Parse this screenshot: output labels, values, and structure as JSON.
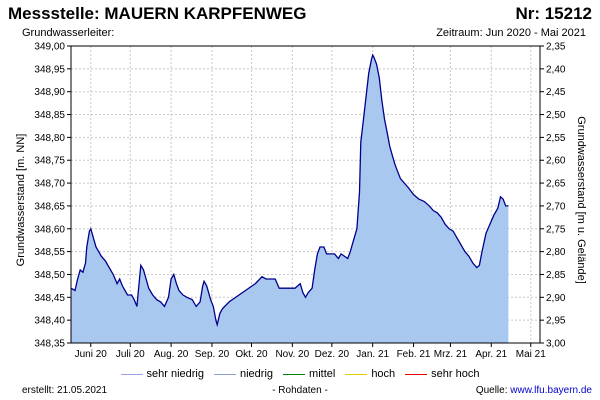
{
  "header": {
    "title": "Messstelle: MAUERN KARPFENWEG",
    "station_nr": "Nr: 15212",
    "aquifer": "Grundwasserleiter:",
    "period": "Zeitraum: Jun 2020 - Mai 2021"
  },
  "footer": {
    "created": "erstellt:  21.05.2021",
    "rawdata": "- Rohdaten -",
    "source_label": "Quelle: ",
    "source_url": "www.lfu.bayern.de"
  },
  "legend": [
    {
      "label": "sehr niedrig",
      "color": "#a0a0e8"
    },
    {
      "label": "niedrig",
      "color": "#8aa0c8"
    },
    {
      "label": "mittel",
      "color": "#008000"
    },
    {
      "label": "hoch",
      "color": "#e0d000"
    },
    {
      "label": "sehr hoch",
      "color": "#e00000"
    }
  ],
  "colors": {
    "area_fill": "#a9c8f0",
    "line": "#00008b",
    "grid": "#c8c8c8"
  },
  "chart_data": {
    "type": "area",
    "ylabel_left": "Grundwasserstand [m. NN]",
    "ylabel_right": "Grundwasserstand [m u. Gelände]",
    "ylim": [
      348.35,
      349.0
    ],
    "yticks_left": [
      "349,00",
      "348,95",
      "348,90",
      "348,85",
      "348,80",
      "348,75",
      "348,70",
      "348,65",
      "348,60",
      "348,55",
      "348,50",
      "348,45",
      "348,40",
      "348,35"
    ],
    "yticks_right": [
      "2,35",
      "2,40",
      "2,45",
      "2,50",
      "2,55",
      "2,60",
      "2,65",
      "2,70",
      "2,75",
      "2,80",
      "2,85",
      "2,90",
      "2,95",
      "3,00"
    ],
    "xlim_days": [
      0,
      356
    ],
    "month_labels": [
      {
        "label": "Juni 20",
        "day": 15
      },
      {
        "label": "Juli 20",
        "day": 45
      },
      {
        "label": "Aug. 20",
        "day": 76
      },
      {
        "label": "Sep. 20",
        "day": 107
      },
      {
        "label": "Okt. 20",
        "day": 137
      },
      {
        "label": "Nov. 20",
        "day": 168
      },
      {
        "label": "Dez. 20",
        "day": 198
      },
      {
        "label": "Jan. 21",
        "day": 229
      },
      {
        "label": "Feb. 21",
        "day": 260
      },
      {
        "label": "Mrz. 21",
        "day": 288
      },
      {
        "label": "Apr. 21",
        "day": 319
      },
      {
        "label": "Mai 21",
        "day": 349
      }
    ],
    "series": [
      {
        "name": "Grundwasserstand",
        "points": [
          [
            0,
            348.47
          ],
          [
            3,
            348.465
          ],
          [
            5,
            348.49
          ],
          [
            7,
            348.51
          ],
          [
            9,
            348.505
          ],
          [
            11,
            348.525
          ],
          [
            12,
            348.56
          ],
          [
            14,
            348.595
          ],
          [
            15,
            348.6
          ],
          [
            17,
            348.58
          ],
          [
            19,
            348.56
          ],
          [
            21,
            348.55
          ],
          [
            23,
            348.54
          ],
          [
            26,
            348.53
          ],
          [
            29,
            348.515
          ],
          [
            32,
            348.5
          ],
          [
            35,
            348.48
          ],
          [
            37,
            348.49
          ],
          [
            39,
            348.475
          ],
          [
            41,
            348.465
          ],
          [
            43,
            348.455
          ],
          [
            46,
            348.455
          ],
          [
            48,
            348.445
          ],
          [
            50,
            348.43
          ],
          [
            52,
            348.49
          ],
          [
            53,
            348.52
          ],
          [
            55,
            348.51
          ],
          [
            57,
            348.49
          ],
          [
            59,
            348.47
          ],
          [
            62,
            348.455
          ],
          [
            65,
            348.445
          ],
          [
            68,
            348.44
          ],
          [
            71,
            348.43
          ],
          [
            74,
            348.45
          ],
          [
            76,
            348.49
          ],
          [
            78,
            348.5
          ],
          [
            80,
            348.48
          ],
          [
            82,
            348.465
          ],
          [
            85,
            348.455
          ],
          [
            88,
            348.45
          ],
          [
            92,
            348.445
          ],
          [
            95,
            348.43
          ],
          [
            98,
            348.44
          ],
          [
            100,
            348.475
          ],
          [
            101,
            348.485
          ],
          [
            103,
            348.475
          ],
          [
            106,
            348.445
          ],
          [
            108,
            348.43
          ],
          [
            110,
            348.4
          ],
          [
            111,
            348.39
          ],
          [
            113,
            348.415
          ],
          [
            115,
            348.425
          ],
          [
            120,
            348.44
          ],
          [
            140,
            348.48
          ],
          [
            145,
            348.495
          ],
          [
            148,
            348.49
          ],
          [
            155,
            348.49
          ],
          [
            158,
            348.47
          ],
          [
            170,
            348.47
          ],
          [
            174,
            348.48
          ],
          [
            176,
            348.46
          ],
          [
            178,
            348.45
          ],
          [
            180,
            348.46
          ],
          [
            183,
            348.47
          ],
          [
            185,
            348.51
          ],
          [
            187,
            348.545
          ],
          [
            189,
            348.56
          ],
          [
            192,
            348.56
          ],
          [
            194,
            348.545
          ],
          [
            200,
            348.545
          ],
          [
            203,
            348.535
          ],
          [
            205,
            348.545
          ],
          [
            210,
            348.535
          ],
          [
            212,
            348.55
          ],
          [
            215,
            348.58
          ],
          [
            217,
            348.6
          ],
          [
            219,
            348.68
          ],
          [
            220,
            348.79
          ],
          [
            222,
            348.84
          ],
          [
            224,
            348.89
          ],
          [
            226,
            348.94
          ],
          [
            228,
            348.97
          ],
          [
            229,
            348.98
          ],
          [
            230,
            348.975
          ],
          [
            232,
            348.96
          ],
          [
            234,
            348.93
          ],
          [
            236,
            348.88
          ],
          [
            238,
            348.84
          ],
          [
            240,
            348.81
          ],
          [
            242,
            348.78
          ],
          [
            244,
            348.76
          ],
          [
            246,
            348.74
          ],
          [
            248,
            348.725
          ],
          [
            250,
            348.71
          ],
          [
            253,
            348.7
          ],
          [
            256,
            348.69
          ],
          [
            260,
            348.675
          ],
          [
            264,
            348.665
          ],
          [
            268,
            348.66
          ],
          [
            272,
            348.65
          ],
          [
            275,
            348.64
          ],
          [
            278,
            348.635
          ],
          [
            281,
            348.625
          ],
          [
            284,
            348.61
          ],
          [
            287,
            348.6
          ],
          [
            290,
            348.595
          ],
          [
            293,
            348.58
          ],
          [
            296,
            348.565
          ],
          [
            299,
            348.55
          ],
          [
            302,
            348.54
          ],
          [
            305,
            348.525
          ],
          [
            308,
            348.515
          ],
          [
            310,
            348.52
          ],
          [
            312,
            348.55
          ],
          [
            315,
            348.59
          ],
          [
            318,
            348.61
          ],
          [
            321,
            348.63
          ],
          [
            324,
            348.645
          ],
          [
            326,
            348.67
          ],
          [
            328,
            348.665
          ],
          [
            330,
            348.65
          ],
          [
            332,
            348.65
          ]
        ]
      }
    ]
  }
}
